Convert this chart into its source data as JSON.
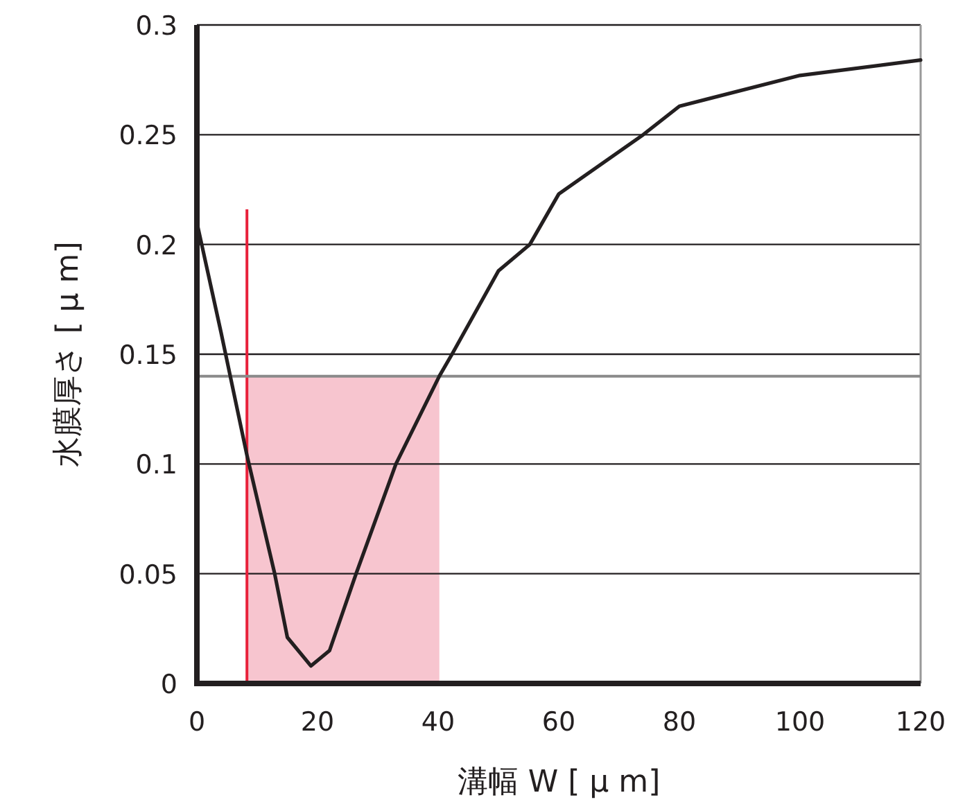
{
  "chart_data": {
    "type": "line",
    "xlabel": "溝幅 W [ μ m]",
    "ylabel": "水膜厚さ [ μ m]",
    "x": [
      0,
      4,
      8.3,
      12.9,
      15,
      18.9,
      22,
      26.4,
      33,
      40.2,
      42.3,
      50,
      55.2,
      60,
      74,
      80,
      100,
      120
    ],
    "series": [
      {
        "color": "#231f20",
        "values": [
          0.21,
          0.16,
          0.104,
          0.05,
          0.021,
          0.008,
          0.015,
          0.05,
          0.1,
          0.14,
          0.15,
          0.188,
          0.2,
          0.223,
          0.25,
          0.263,
          0.277,
          0.284
        ]
      }
    ],
    "xlim": [
      0,
      120
    ],
    "ylim": [
      0,
      0.3
    ],
    "xticks": [
      0,
      20,
      40,
      60,
      80,
      100,
      120
    ],
    "yticks": [
      0,
      0.05,
      0.1,
      0.15,
      0.2,
      0.25,
      0.3
    ],
    "grid": "y",
    "ref_lines": [
      {
        "axis": "x",
        "value": 8.3,
        "color": "#e8203a"
      },
      {
        "axis": "y",
        "value": 0.14,
        "color": "#8a8a8a"
      }
    ],
    "bands": [
      {
        "axis": "x",
        "from": 8.3,
        "to": 40.2,
        "color": "#f7c5cf"
      }
    ]
  }
}
